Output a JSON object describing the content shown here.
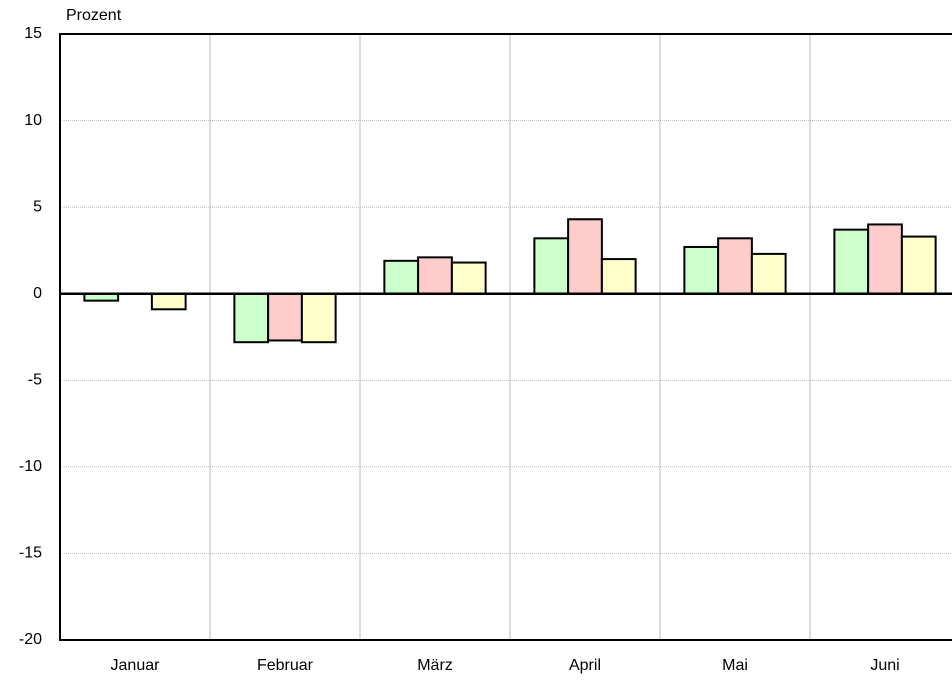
{
  "chart_data": {
    "type": "bar",
    "y_label": "Prozent",
    "categories": [
      "Januar",
      "Februar",
      "März",
      "April",
      "Mai",
      "Juni"
    ],
    "series": [
      {
        "color": "#ccffcc",
        "values": [
          -0.4,
          -2.8,
          1.9,
          3.2,
          2.7,
          3.7
        ]
      },
      {
        "color": "#ffcccc",
        "values": [
          null,
          -2.7,
          2.1,
          4.3,
          3.2,
          4.0
        ]
      },
      {
        "color": "#ffffcc",
        "values": [
          -0.9,
          -2.8,
          1.8,
          2.0,
          2.3,
          3.3
        ]
      }
    ],
    "ylim": [
      -20,
      15
    ],
    "yticks": [
      -20,
      -15,
      -10,
      -5,
      0,
      5,
      10,
      15
    ],
    "grid": true
  }
}
